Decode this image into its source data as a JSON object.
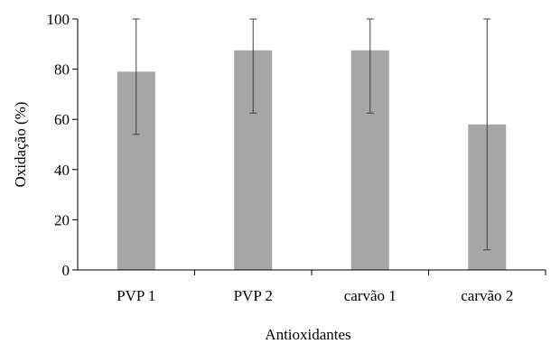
{
  "chart_data": {
    "type": "bar",
    "xlabel": "Antioxidantes",
    "ylabel": "Oxidação (%)",
    "categories": [
      "PVP 1",
      "PVP 2",
      "carvão 1",
      "carvão 2"
    ],
    "values": [
      79,
      87.5,
      87.5,
      58
    ],
    "error_low": [
      54,
      62.5,
      62.5,
      8
    ],
    "error_high": [
      100,
      100,
      100,
      100
    ],
    "ylim": [
      0,
      100
    ],
    "yticks": [
      0,
      20,
      40,
      60,
      80,
      100
    ],
    "ytick_labels": [
      "0",
      "20",
      "40",
      "60",
      "80",
      "100"
    ],
    "grid": false,
    "legend": false,
    "colors": {
      "bar": "#a6a6a6",
      "error": "#404040",
      "axis": "#000000"
    }
  }
}
